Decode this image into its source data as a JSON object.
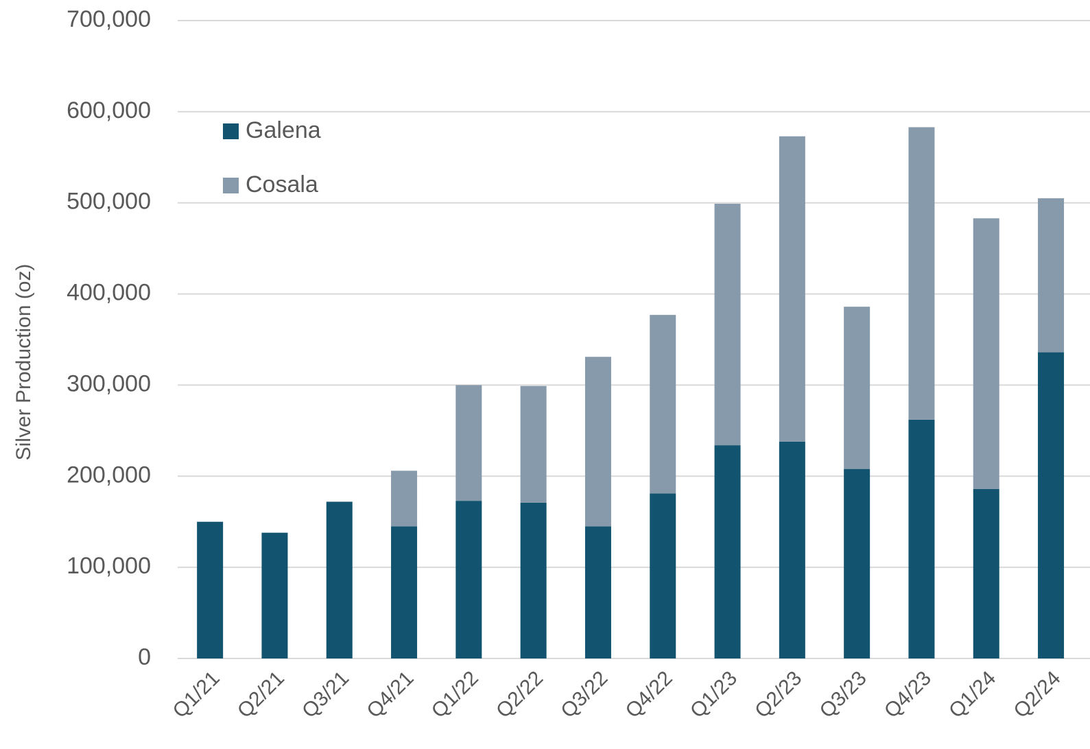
{
  "chart_data": {
    "type": "stacked_bar",
    "y_label": "Silver Production (oz)",
    "categories": [
      "Q1/21",
      "Q2/21",
      "Q3/21",
      "Q4/21",
      "Q1/22",
      "Q2/22",
      "Q3/22",
      "Q4/22",
      "Q1/23",
      "Q2/23",
      "Q3/23",
      "Q4/23",
      "Q1/24",
      "Q2/24"
    ],
    "series": [
      {
        "name": "Galena",
        "color": "#12546f",
        "values": [
          150000,
          138000,
          172000,
          145000,
          173000,
          171000,
          145000,
          181000,
          234000,
          238000,
          208000,
          262000,
          186000,
          336000
        ]
      },
      {
        "name": "Cosala",
        "color": "#879aab",
        "values": [
          0,
          0,
          0,
          61000,
          127000,
          128000,
          186000,
          196000,
          265000,
          335000,
          178000,
          321000,
          297000,
          169000
        ]
      }
    ],
    "ylim": [
      0,
      700000
    ],
    "yticks": [
      0,
      {
        "value": 100000,
        "label": "100,000"
      },
      {
        "value": 200000,
        "label": "200,000"
      },
      {
        "value": 300000,
        "label": "300,000"
      },
      {
        "value": 400000,
        "label": "400,000"
      },
      {
        "value": 500000,
        "label": "500,000"
      },
      {
        "value": 600000,
        "label": "600,000"
      },
      {
        "value": 700000,
        "label": "700,000"
      }
    ],
    "grid": true,
    "legend": "upper left"
  }
}
